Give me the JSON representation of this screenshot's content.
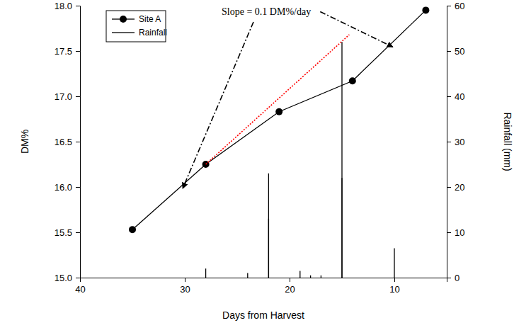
{
  "chart_data": {
    "type": "line",
    "x_label": "Days from Harvest",
    "y_label": "DM%",
    "y2_label": "Rainfall (mm)",
    "xlim": [
      40,
      5
    ],
    "xticks": [
      40,
      30,
      20,
      10
    ],
    "ylim": [
      15,
      18
    ],
    "yticks": [
      {
        "value": 15,
        "label": "15.0"
      },
      15.5,
      {
        "value": 16,
        "label": "16.0"
      },
      16.5,
      {
        "value": 17,
        "label": "17.0"
      },
      17.5,
      {
        "value": 18,
        "label": "18.0"
      }
    ],
    "y2lim": [
      0,
      60
    ],
    "y2ticks": [
      0,
      10,
      20,
      30,
      40,
      50,
      60
    ],
    "legend": "upper left",
    "series": [
      {
        "name": "Site A",
        "type": "line",
        "color": "#000000",
        "marker": "circle",
        "line_style": "solid",
        "x": [
          35,
          28,
          21,
          14,
          7
        ],
        "values": [
          15.53,
          16.25,
          16.83,
          17.17,
          17.95
        ]
      },
      {
        "name": "Rainfall",
        "type": "bar",
        "axis": "y2",
        "color": "#000000",
        "x": [
          28,
          24,
          22,
          22,
          19,
          18,
          17,
          15,
          15,
          10
        ],
        "values": [
          2,
          1,
          23,
          13,
          1.5,
          0.5,
          0.5,
          52,
          22,
          6.5
        ]
      }
    ],
    "reference_line": {
      "color": "#ff0000",
      "line_style": "dotted",
      "x": [
        28,
        14.3
      ],
      "values": [
        16.25,
        17.68
      ]
    },
    "annotation": "Slope = 0.1 DM%/day"
  }
}
